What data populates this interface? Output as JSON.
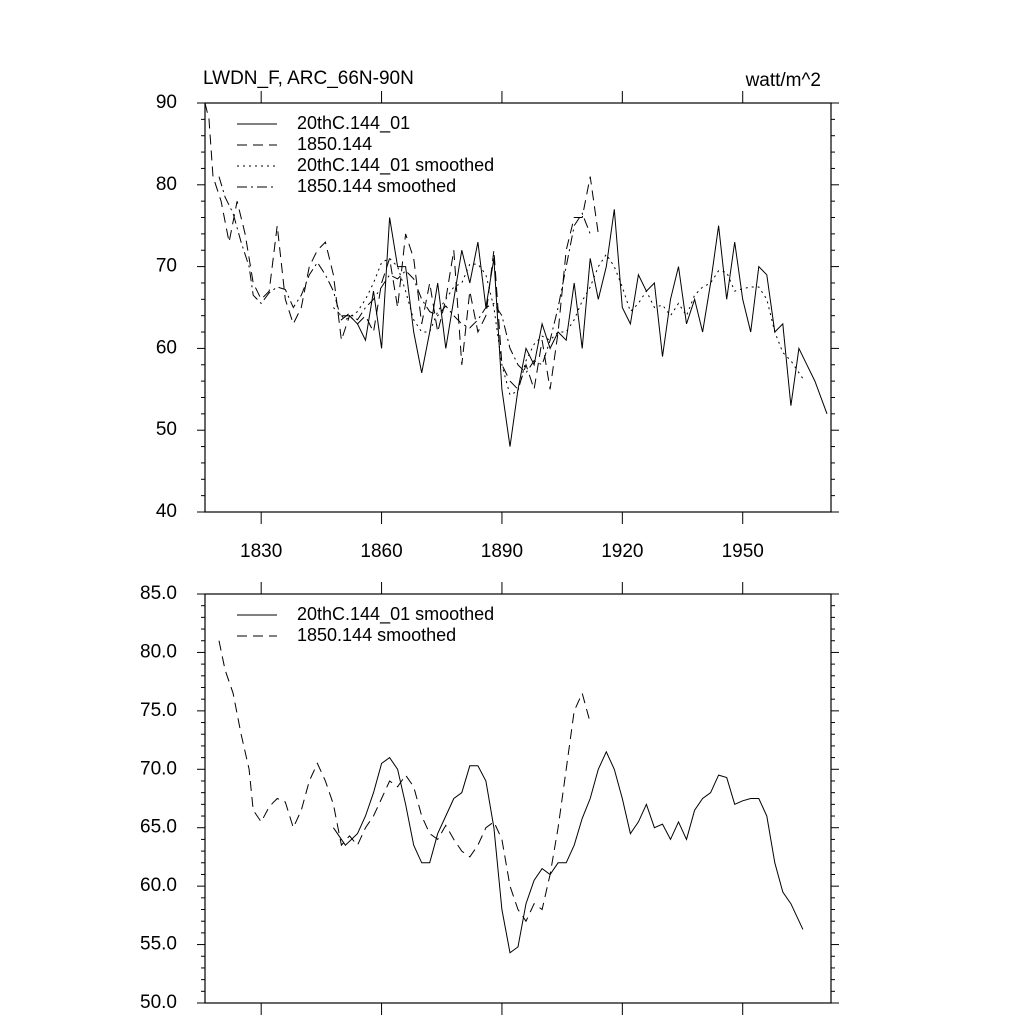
{
  "chart_data": [
    {
      "type": "line",
      "title": "LWDN_F, ARC_66N-90N",
      "units": "watt/m^2",
      "xlim": [
        1816,
        1972
      ],
      "xticks": [
        1830,
        1860,
        1890,
        1920,
        1950
      ],
      "show_xtick_labels": true,
      "ylim": [
        40,
        90
      ],
      "yticks": [
        40,
        50,
        60,
        70,
        80,
        90
      ],
      "legend": "upper left",
      "series": [
        {
          "name": "20thC.144_01",
          "color": "#000000",
          "line_style": "solid",
          "x": [
            1850,
            1852,
            1854,
            1856,
            1858,
            1860,
            1862,
            1864,
            1866,
            1868,
            1870,
            1872,
            1874,
            1876,
            1878,
            1880,
            1882,
            1884,
            1886,
            1888,
            1890,
            1892,
            1894,
            1896,
            1898,
            1900,
            1902,
            1904,
            1906,
            1908,
            1910,
            1912,
            1914,
            1916,
            1918,
            1920,
            1922,
            1924,
            1926,
            1928,
            1930,
            1932,
            1934,
            1936,
            1938,
            1940,
            1942,
            1944,
            1946,
            1948,
            1950,
            1952,
            1954,
            1956,
            1958,
            1960,
            1962,
            1964,
            1966,
            1968,
            1971
          ],
          "values": [
            64,
            64,
            63,
            61,
            67,
            60,
            76,
            70,
            70,
            62,
            57,
            62,
            68,
            60,
            66,
            72,
            68,
            73,
            65,
            71,
            55,
            48,
            55,
            60,
            58,
            63,
            60,
            62,
            61,
            68,
            60,
            71,
            66,
            70,
            77,
            65,
            63,
            69,
            67,
            68,
            59,
            66,
            70,
            63,
            66,
            62,
            68,
            75,
            66,
            73,
            66,
            62,
            70,
            69,
            62,
            63,
            53,
            60,
            58,
            56,
            52
          ]
        },
        {
          "name": "1850.144",
          "color": "#000000",
          "line_style": "dashed",
          "x": [
            1816,
            1817,
            1818,
            1820,
            1822,
            1824,
            1826,
            1828,
            1830,
            1832,
            1834,
            1836,
            1838,
            1840,
            1842,
            1844,
            1846,
            1848,
            1850,
            1852,
            1854,
            1856,
            1858,
            1860,
            1862,
            1864,
            1866,
            1868,
            1870,
            1872,
            1874,
            1876,
            1878,
            1880,
            1882,
            1884,
            1886,
            1888,
            1890,
            1892,
            1894,
            1896,
            1898,
            1900,
            1902,
            1904,
            1906,
            1908,
            1910,
            1912,
            1914
          ],
          "values": [
            90,
            88,
            81,
            78,
            73,
            78,
            74,
            68,
            66,
            67,
            75,
            66,
            63,
            65,
            70,
            72,
            73,
            69,
            61,
            64,
            63,
            64,
            62,
            68,
            71,
            65,
            74,
            71,
            63,
            68,
            62,
            66,
            72,
            58,
            67,
            62,
            64,
            72,
            58,
            56,
            55,
            58,
            55,
            61,
            55,
            62,
            72,
            76,
            76,
            81,
            74
          ]
        },
        {
          "name": "20thC.144_01 smoothed",
          "color": "#000000",
          "line_style": "dotted",
          "x": [
            1848,
            1851,
            1854,
            1856,
            1858,
            1860,
            1862,
            1864,
            1866,
            1868,
            1870,
            1872,
            1874,
            1876,
            1878,
            1880,
            1882,
            1884,
            1886,
            1888,
            1890,
            1892,
            1894,
            1896,
            1898,
            1900,
            1902,
            1904,
            1906,
            1908,
            1910,
            1912,
            1914,
            1916,
            1918,
            1920,
            1922,
            1924,
            1926,
            1928,
            1930,
            1932,
            1934,
            1936,
            1938,
            1940,
            1942,
            1944,
            1946,
            1948,
            1950,
            1952,
            1954,
            1956,
            1958,
            1960,
            1962,
            1965
          ],
          "values": [
            65,
            63.5,
            64.5,
            66,
            68,
            70.5,
            71,
            70,
            67,
            63.5,
            62,
            62,
            64.5,
            66,
            67.5,
            68,
            70.3,
            70.3,
            69,
            65,
            58,
            54.3,
            54.8,
            58.5,
            60.5,
            61.5,
            61,
            62,
            62,
            63.5,
            65.8,
            67.5,
            70,
            71.5,
            70,
            67.5,
            64.5,
            65.5,
            67,
            65,
            65.3,
            64,
            65.5,
            64,
            66.5,
            67.5,
            68,
            69.5,
            69.3,
            67,
            67.3,
            67.5,
            67.5,
            66,
            62,
            59.5,
            58.5,
            56.3
          ]
        },
        {
          "name": "1850.144 smoothed",
          "color": "#000000",
          "line_style": "dashdot",
          "x": [
            1819.5,
            1821,
            1823,
            1825,
            1827,
            1828,
            1830,
            1832,
            1834,
            1836,
            1838,
            1840,
            1842,
            1844,
            1846,
            1848,
            1850,
            1852,
            1854,
            1856,
            1858,
            1860,
            1862,
            1864,
            1866,
            1868,
            1870,
            1872,
            1874,
            1876,
            1878,
            1880,
            1882,
            1884,
            1886,
            1888,
            1890,
            1892,
            1894,
            1896,
            1898,
            1900,
            1902,
            1904,
            1906,
            1908,
            1910,
            1912
          ],
          "values": [
            81,
            78.5,
            76.5,
            73,
            70,
            66.5,
            65.5,
            66.8,
            67.5,
            67.2,
            65,
            66.5,
            69,
            70.5,
            69,
            67,
            63.5,
            64.3,
            63.5,
            65,
            66,
            67.5,
            69,
            68.5,
            69.5,
            68.5,
            66,
            64.5,
            64,
            65.2,
            64,
            63,
            62.5,
            63.5,
            65,
            65.5,
            64,
            60,
            58,
            57,
            58.5,
            58,
            61,
            65,
            70,
            75,
            76.5,
            74
          ]
        }
      ]
    },
    {
      "type": "line",
      "xlim": [
        1816,
        1972
      ],
      "xticks": [
        1830,
        1860,
        1890,
        1920,
        1950
      ],
      "show_xtick_labels": false,
      "ylim": [
        50,
        85
      ],
      "yticks": [
        {
          "value": 50,
          "label": "50.0"
        },
        {
          "value": 55,
          "label": "55.0"
        },
        {
          "value": 60,
          "label": "60.0"
        },
        {
          "value": 65,
          "label": "65.0"
        },
        {
          "value": 70,
          "label": "70.0"
        },
        {
          "value": 75,
          "label": "75.0"
        },
        {
          "value": 80,
          "label": "80.0"
        },
        {
          "value": 85,
          "label": "85.0"
        }
      ],
      "legend": "upper left",
      "series": [
        {
          "name": "20thC.144_01 smoothed",
          "color": "#000000",
          "line_style": "solid",
          "x": [
            1848,
            1851,
            1854,
            1856,
            1858,
            1860,
            1862,
            1864,
            1866,
            1868,
            1870,
            1872,
            1874,
            1876,
            1878,
            1880,
            1882,
            1884,
            1886,
            1888,
            1890,
            1892,
            1894,
            1896,
            1898,
            1900,
            1902,
            1904,
            1906,
            1908,
            1910,
            1912,
            1914,
            1916,
            1918,
            1920,
            1922,
            1924,
            1926,
            1928,
            1930,
            1932,
            1934,
            1936,
            1938,
            1940,
            1942,
            1944,
            1946,
            1948,
            1950,
            1952,
            1954,
            1956,
            1958,
            1960,
            1962,
            1965
          ],
          "values": [
            65,
            63.5,
            64.5,
            66,
            68,
            70.5,
            71,
            70,
            67,
            63.5,
            62,
            62,
            64.5,
            66,
            67.5,
            68,
            70.3,
            70.3,
            69,
            65,
            58,
            54.3,
            54.8,
            58.5,
            60.5,
            61.5,
            61,
            62,
            62,
            63.5,
            65.8,
            67.5,
            70,
            71.5,
            70,
            67.5,
            64.5,
            65.5,
            67,
            65,
            65.3,
            64,
            65.5,
            64,
            66.5,
            67.5,
            68,
            69.5,
            69.3,
            67,
            67.3,
            67.5,
            67.5,
            66,
            62,
            59.5,
            58.5,
            56.3
          ]
        },
        {
          "name": "1850.144 smoothed",
          "color": "#000000",
          "line_style": "dashed",
          "x": [
            1819.5,
            1821,
            1823,
            1825,
            1827,
            1828,
            1830,
            1832,
            1834,
            1836,
            1838,
            1840,
            1842,
            1844,
            1846,
            1848,
            1850,
            1852,
            1854,
            1856,
            1858,
            1860,
            1862,
            1864,
            1866,
            1868,
            1870,
            1872,
            1874,
            1876,
            1878,
            1880,
            1882,
            1884,
            1886,
            1888,
            1890,
            1892,
            1894,
            1896,
            1898,
            1900,
            1902,
            1904,
            1906,
            1908,
            1910,
            1912
          ],
          "values": [
            81,
            78.5,
            76.5,
            73,
            70,
            66.5,
            65.5,
            66.8,
            67.5,
            67.2,
            65,
            66.5,
            69,
            70.5,
            69,
            67,
            63.5,
            64.3,
            63.5,
            65,
            66,
            67.5,
            69,
            68.5,
            69.5,
            68.5,
            66,
            64.5,
            64,
            65.2,
            64,
            63,
            62.5,
            63.5,
            65,
            65.5,
            64,
            60,
            58,
            57,
            58.5,
            58,
            61,
            65,
            70,
            75,
            76.5,
            74
          ]
        }
      ]
    }
  ]
}
